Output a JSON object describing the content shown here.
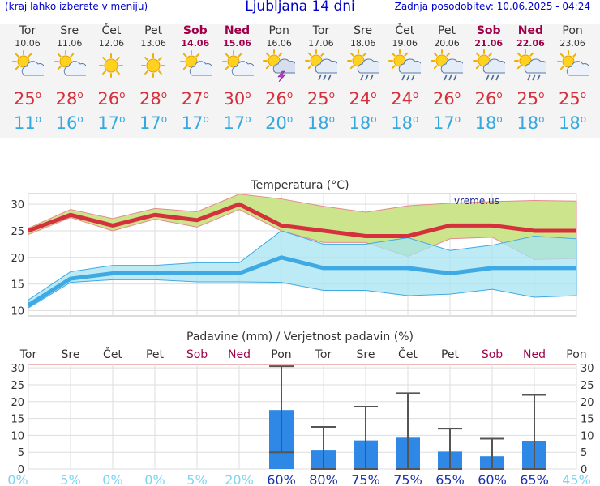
{
  "header": {
    "menu_hint": "(kraj lahko izberete v meniju)",
    "title": "Ljubljana 14 dni",
    "updated": "Zadnja posodobitev: 10.06.2025 - 04:24"
  },
  "days": [
    {
      "name": "Tor",
      "date": "10.06",
      "weekend": false,
      "icon": "sun-cloud-icon",
      "hi": "25",
      "lo": "11"
    },
    {
      "name": "Sre",
      "date": "11.06",
      "weekend": false,
      "icon": "sun-cloud-icon",
      "hi": "28",
      "lo": "16"
    },
    {
      "name": "Čet",
      "date": "12.06",
      "weekend": false,
      "icon": "sun-icon",
      "hi": "26",
      "lo": "17"
    },
    {
      "name": "Pet",
      "date": "13.06",
      "weekend": false,
      "icon": "sun-icon",
      "hi": "28",
      "lo": "17"
    },
    {
      "name": "Sob",
      "date": "14.06",
      "weekend": true,
      "icon": "sun-cloud-icon",
      "hi": "27",
      "lo": "17"
    },
    {
      "name": "Ned",
      "date": "15.06",
      "weekend": true,
      "icon": "sun-cloud-icon",
      "hi": "30",
      "lo": "17"
    },
    {
      "name": "Pon",
      "date": "16.06",
      "weekend": false,
      "icon": "thunderstorm-icon",
      "hi": "26",
      "lo": "20"
    },
    {
      "name": "Tor",
      "date": "17.06",
      "weekend": false,
      "icon": "sun-cloud-rain-icon",
      "hi": "25",
      "lo": "18"
    },
    {
      "name": "Sre",
      "date": "18.06",
      "weekend": false,
      "icon": "sun-cloud-rain-icon",
      "hi": "24",
      "lo": "18"
    },
    {
      "name": "Čet",
      "date": "19.06",
      "weekend": false,
      "icon": "sun-cloud-rain-icon",
      "hi": "24",
      "lo": "18"
    },
    {
      "name": "Pet",
      "date": "20.06",
      "weekend": false,
      "icon": "sun-cloud-rain-icon",
      "hi": "26",
      "lo": "17"
    },
    {
      "name": "Sob",
      "date": "21.06",
      "weekend": true,
      "icon": "sun-cloud-rain-icon",
      "hi": "26",
      "lo": "18"
    },
    {
      "name": "Ned",
      "date": "22.06",
      "weekend": true,
      "icon": "sun-cloud-rain-icon",
      "hi": "25",
      "lo": "18"
    },
    {
      "name": "Pon",
      "date": "23.06",
      "weekend": false,
      "icon": "sun-cloud-icon",
      "hi": "25",
      "lo": "18"
    }
  ],
  "chart_data": [
    {
      "type": "line",
      "title": "Temperatura (°C)",
      "watermark": "vreme.us",
      "categories": [
        "Tor",
        "Sre",
        "Čet",
        "Pet",
        "Sob",
        "Ned",
        "Pon",
        "Tor",
        "Sre",
        "Čet",
        "Pet",
        "Sob",
        "Ned",
        "Pon"
      ],
      "ylim": [
        9,
        32
      ],
      "yticks": [
        10,
        15,
        20,
        25,
        30
      ],
      "grid": true,
      "series": [
        {
          "values": [
            25,
            28,
            26,
            28,
            27,
            30,
            26,
            25,
            24,
            24,
            26,
            26,
            25,
            25
          ],
          "color": "#d4313d"
        },
        {
          "values": [
            11,
            16,
            17,
            17,
            17,
            17,
            20,
            18,
            18,
            18,
            17,
            18,
            18,
            18
          ],
          "color": "#3fa9e3"
        }
      ],
      "bands": [
        {
          "upper": [
            25.5,
            29,
            27.3,
            29.2,
            28.6,
            31.9,
            31,
            29.6,
            28.5,
            29.7,
            30.2,
            30.5,
            30.7,
            30.6
          ],
          "lower": [
            24.3,
            27.5,
            25,
            27.2,
            25.7,
            29,
            25,
            22.8,
            22.8,
            20.2,
            23.5,
            23.8,
            19.6,
            19.8
          ],
          "color": "#cce58d"
        },
        {
          "upper": [
            12,
            17.3,
            18.5,
            18.5,
            19,
            19,
            25,
            22.5,
            22.5,
            23.7,
            21.3,
            22.3,
            24,
            23.5
          ],
          "lower": [
            10.5,
            15.3,
            15.8,
            15.8,
            15.4,
            15.4,
            15.3,
            13.8,
            13.8,
            12.8,
            13.1,
            14,
            12.5,
            12.8
          ],
          "color": "#a5e4f2"
        }
      ]
    },
    {
      "type": "bar",
      "title": "Padavine (mm) / Verjetnost padavin (%)",
      "categories": [
        "Tor",
        "Sre",
        "Čet",
        "Pet",
        "Sob",
        "Ned",
        "Pon",
        "Tor",
        "Sre",
        "Čet",
        "Pet",
        "Sob",
        "Ned",
        "Pon"
      ],
      "ylim": [
        0,
        31
      ],
      "yticks": [
        0,
        5,
        10,
        15,
        20,
        25,
        30
      ],
      "values": [
        0,
        0,
        0,
        0,
        0,
        0,
        17.5,
        5.5,
        8.5,
        9.3,
        5.2,
        3.8,
        8.2,
        0
      ],
      "error_low": [
        0,
        0,
        0,
        0,
        0,
        0,
        5,
        0,
        0,
        0,
        0,
        0,
        0,
        0
      ],
      "error_high": [
        0,
        0,
        0,
        0,
        0,
        0,
        30.5,
        12.5,
        18.5,
        22.5,
        12,
        9,
        22,
        0
      ],
      "probabilities": [
        "0%",
        "5%",
        "0%",
        "0%",
        "5%",
        "20%",
        "60%",
        "80%",
        "75%",
        "75%",
        "65%",
        "60%",
        "65%",
        "45%"
      ],
      "bar_color": "#2f87e6",
      "weekend_label_color": "#a0004a"
    }
  ]
}
